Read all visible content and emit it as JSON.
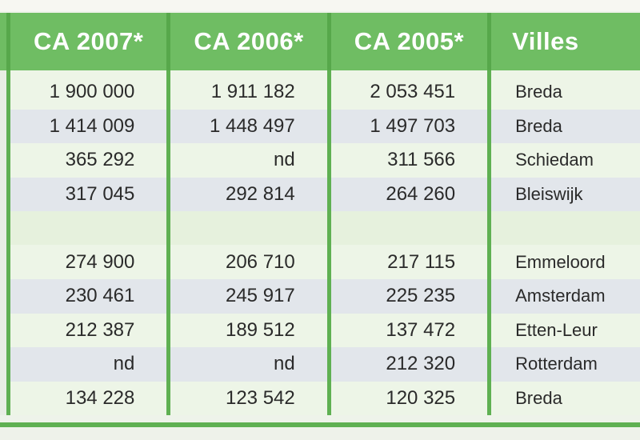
{
  "table": {
    "headers": [
      "CA 2007*",
      "CA 2006*",
      "CA 2005*",
      "Villes"
    ],
    "rows": [
      {
        "ca2007": "1 900 000",
        "ca2006": "1 911 182",
        "ca2005": "2 053 451",
        "ville": "Breda"
      },
      {
        "ca2007": "1 414 009",
        "ca2006": "1 448 497",
        "ca2005": "1 497 703",
        "ville": "Breda"
      },
      {
        "ca2007": "365 292",
        "ca2006": "nd",
        "ca2005": "311 566",
        "ville": "Schiedam"
      },
      {
        "ca2007": "317 045",
        "ca2006": "292 814",
        "ca2005": "264 260",
        "ville": "Bleiswijk"
      },
      {
        "ca2007": "274 900",
        "ca2006": "206 710",
        "ca2005": "217 115",
        "ville": "Emmeloord"
      },
      {
        "ca2007": "230 461",
        "ca2006": "245 917",
        "ca2005": "225 235",
        "ville": "Amsterdam"
      },
      {
        "ca2007": "212 387",
        "ca2006": "189 512",
        "ca2005": "137 472",
        "ville": "Etten-Leur"
      },
      {
        "ca2007": "nd",
        "ca2006": "nd",
        "ca2005": "212 320",
        "ville": "Rotterdam"
      },
      {
        "ca2007": "134 228",
        "ca2006": "123 542",
        "ca2005": "120 325",
        "ville": "Breda"
      }
    ]
  },
  "colors": {
    "header_green": "#6fbd63",
    "rule_green": "#5fb052",
    "band_light": "#edf5e7",
    "band_dark": "#e2e6eb"
  }
}
